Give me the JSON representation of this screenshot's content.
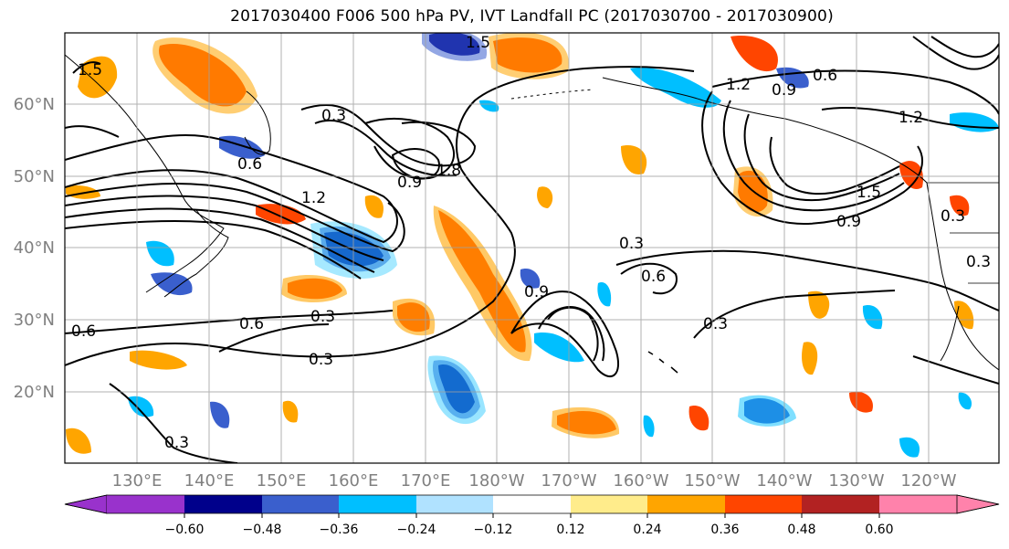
{
  "title": "2017030400 F006 500 hPa PV, IVT Landfall PC (2017030700 - 2017030900)",
  "map": {
    "lat_labels": [
      "60°N",
      "50°N",
      "40°N",
      "30°N",
      "20°N"
    ],
    "lon_labels": [
      "130°E",
      "140°E",
      "150°E",
      "160°E",
      "170°E",
      "180°W",
      "170°W",
      "160°W",
      "150°W",
      "140°W",
      "130°W",
      "120°W"
    ],
    "contour_labels": [
      "1.5",
      "0.3",
      "1.2",
      "0.6",
      "0.9",
      "1.8",
      "0.3",
      "0.6",
      "0.9",
      "1.2",
      "0.3",
      "0.6",
      "0.3",
      "0.6",
      "0.3",
      "0.3",
      "0.9",
      "1.5",
      "1.2",
      "0.9",
      "0.3",
      "0.6",
      "1.5",
      "0.3"
    ]
  },
  "colorbar": {
    "ticks": [
      "−0.60",
      "−0.48",
      "−0.36",
      "−0.24",
      "−0.12",
      "0.12",
      "0.24",
      "0.36",
      "0.48",
      "0.60"
    ],
    "colors": [
      "#9932cc",
      "#00008b",
      "#3a5fcd",
      "#00bfff",
      "#b0e2ff",
      "#ffffff",
      "#ffec8b",
      "#ffa500",
      "#ff4500",
      "#b22222",
      "#ff82ab"
    ]
  },
  "colors": {
    "contour": "#000000",
    "grid": "#a0a0a0",
    "label_gray": "#808080"
  }
}
